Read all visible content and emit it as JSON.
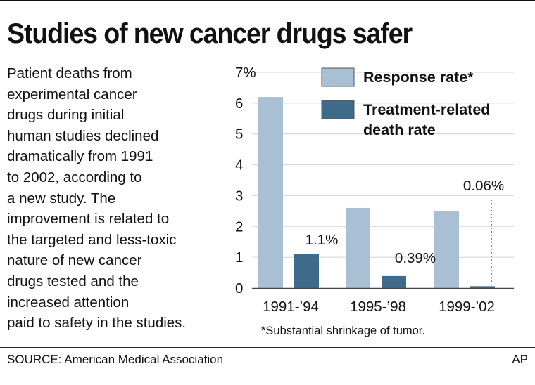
{
  "header": {
    "title": "Studies of new cancer drugs safer"
  },
  "description_lines": [
    "Patient deaths from",
    "experimental cancer",
    "drugs during initial",
    "human studies declined",
    "dramatically from 1991",
    "to 2002, according to",
    "a new study. The",
    "improvement is related to",
    "the targeted and less-toxic",
    "nature of new cancer",
    "drugs tested and the",
    "increased attention",
    "paid to safety in the studies."
  ],
  "chart_data": {
    "type": "bar",
    "categories": [
      "1991-’94",
      "1995-’98",
      "1999-’02"
    ],
    "series": [
      {
        "name": "Response rate*",
        "values": [
          6.2,
          2.6,
          2.5
        ],
        "color": "#a9bfd3"
      },
      {
        "name": "Treatment-related death rate",
        "values": [
          1.1,
          0.39,
          0.06
        ],
        "color": "#3e6b8a"
      }
    ],
    "legend_lines": [
      [
        "Response rate*"
      ],
      [
        "Treatment-related",
        "death rate"
      ]
    ],
    "data_labels": [
      "1.1%",
      "0.39%",
      "0.06%"
    ],
    "y_ticks": [
      "0",
      "1",
      "2",
      "3",
      "4",
      "5",
      "6",
      "7%"
    ],
    "ylim": [
      0,
      7
    ],
    "grid": true,
    "legend_position": "top-right",
    "footnote": "*Substantial shrinkage of tumor.",
    "title": "",
    "xlabel": "",
    "ylabel": ""
  },
  "footer": {
    "source": "SOURCE: American Medical Association",
    "credit": "AP"
  }
}
